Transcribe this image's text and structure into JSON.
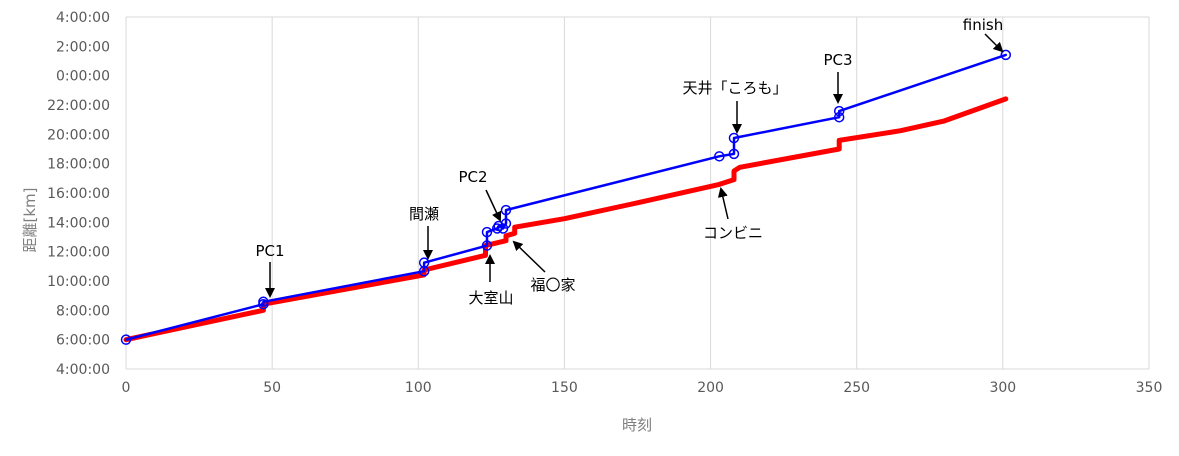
{
  "chart_data": {
    "type": "line",
    "xlabel": "時刻",
    "ylabel": "距離[km]",
    "xlim": [
      0,
      350
    ],
    "x_ticks": [
      "0",
      "50",
      "100",
      "150",
      "200",
      "250",
      "300",
      "350"
    ],
    "y_ticks": [
      "4:00:00",
      "6:00:00",
      "8:00:00",
      "10:00:00",
      "12:00:00",
      "14:00:00",
      "16:00:00",
      "18:00:00",
      "20:00:00",
      "22:00:00",
      "0:00:00",
      "2:00:00",
      "4:00:00"
    ],
    "grid": "vertical",
    "series": [
      {
        "color": "#0000ff",
        "marker": "open-circle",
        "points": [
          {
            "x": 0,
            "y": "6:00:00"
          },
          {
            "x": 47,
            "y": "8:25:00"
          },
          {
            "x": 47,
            "y": "8:35:00"
          },
          {
            "x": 102,
            "y": "10:40:00"
          },
          {
            "x": 102,
            "y": "11:15:00"
          },
          {
            "x": 123.5,
            "y": "12:25:00"
          },
          {
            "x": 123.5,
            "y": "13:20:00"
          },
          {
            "x": 127,
            "y": "13:35:00"
          },
          {
            "x": 127.5,
            "y": "13:45:00"
          },
          {
            "x": 129,
            "y": "13:35:00"
          },
          {
            "x": 130,
            "y": "13:55:00"
          },
          {
            "x": 130,
            "y": "14:50:00"
          },
          {
            "x": 203,
            "y": "18:30:00"
          },
          {
            "x": 208,
            "y": "18:40:00"
          },
          {
            "x": 208,
            "y": "19:45:00"
          },
          {
            "x": 244,
            "y": "21:10:00"
          },
          {
            "x": 244,
            "y": "21:35:00"
          },
          {
            "x": 301,
            "y": "1:25:00"
          }
        ]
      },
      {
        "color": "#ff0000",
        "points": [
          {
            "x": 0,
            "y": "6:00:00"
          },
          {
            "x": 47,
            "y": "8:00:00"
          },
          {
            "x": 47,
            "y": "8:25:00"
          },
          {
            "x": 102,
            "y": "10:25:00"
          },
          {
            "x": 102,
            "y": "10:45:00"
          },
          {
            "x": 123,
            "y": "11:45:00"
          },
          {
            "x": 123,
            "y": "12:25:00"
          },
          {
            "x": 130,
            "y": "12:45:00"
          },
          {
            "x": 130,
            "y": "13:05:00"
          },
          {
            "x": 133,
            "y": "13:15:00"
          },
          {
            "x": 133,
            "y": "13:40:00"
          },
          {
            "x": 150,
            "y": "14:15:00"
          },
          {
            "x": 175,
            "y": "15:20:00"
          },
          {
            "x": 203,
            "y": "16:35:00"
          },
          {
            "x": 208,
            "y": "16:55:00"
          },
          {
            "x": 208,
            "y": "17:30:00"
          },
          {
            "x": 210,
            "y": "17:45:00"
          },
          {
            "x": 244,
            "y": "19:00:00"
          },
          {
            "x": 244,
            "y": "19:35:00"
          },
          {
            "x": 265,
            "y": "20:15:00"
          },
          {
            "x": 280,
            "y": "20:55:00"
          },
          {
            "x": 301,
            "y": "22:25:00"
          }
        ]
      }
    ],
    "annotations": [
      {
        "text": "PC1",
        "x": 48,
        "y": "8:35:00"
      },
      {
        "text": "間瀬",
        "x": 103,
        "y": "11:15:00"
      },
      {
        "text": "PC2",
        "x": 128,
        "y": "13:50:00"
      },
      {
        "text": "大室山",
        "x": 124,
        "y": "11:40:00"
      },
      {
        "text": "福〇家",
        "x": 133,
        "y": "12:40:00"
      },
      {
        "text": "天井「ころも」",
        "x": 209,
        "y": "19:45:00"
      },
      {
        "text": "コンビニ",
        "x": 204,
        "y": "16:30:00"
      },
      {
        "text": "PC3",
        "x": 244,
        "y": "21:30:00"
      },
      {
        "text": "finish",
        "x": 301,
        "y": "1:25:00"
      }
    ]
  }
}
